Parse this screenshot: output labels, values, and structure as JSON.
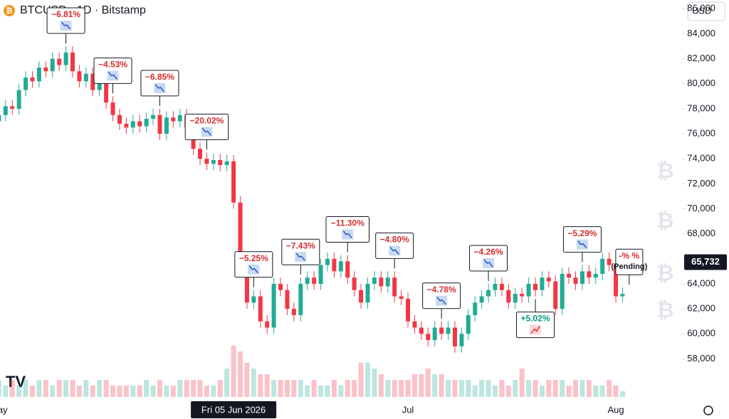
{
  "chart_data": {
    "type": "candlestick",
    "title": "BTCUSD · 1D · Bitstamp",
    "currency": "USD",
    "up_color": "#22ab94",
    "down_color": "#f23645",
    "open": [
      77000,
      77500,
      78200,
      78000,
      79500,
      80500,
      80200,
      81300,
      81000,
      82000,
      81500,
      82500,
      81000,
      80200,
      80800,
      79500,
      80500,
      78500,
      77500,
      76800,
      76500,
      77000,
      76600,
      77200,
      77500,
      76000,
      77300,
      77000,
      77500,
      76500,
      74800,
      74000,
      73600,
      73900,
      73500,
      73800,
      70500,
      66000,
      62500,
      63000,
      61000,
      60500,
      64000,
      63500,
      62000,
      61500,
      64000,
      64500,
      64000,
      65500,
      66000,
      65000,
      65800,
      64500,
      63500,
      62500,
      64000,
      64500,
      63800,
      64500,
      63000,
      62800,
      61000,
      60500,
      60000,
      59500,
      60500,
      60000,
      60500,
      59000,
      60000,
      61500,
      62500,
      63000,
      63500,
      64000,
      63500,
      62500,
      63200,
      63000,
      64000,
      63500,
      64500,
      64200,
      62000,
      64800,
      64500,
      64000,
      65000,
      64500,
      64800,
      66000,
      65500,
      63000
    ],
    "high": [
      78000,
      78700,
      78700,
      80000,
      81000,
      81000,
      81800,
      81800,
      82500,
      82500,
      83000,
      83000,
      81500,
      81300,
      81300,
      81000,
      81000,
      79000,
      78000,
      77300,
      77500,
      77500,
      77700,
      78000,
      78000,
      77800,
      77800,
      78000,
      78000,
      77000,
      75300,
      74500,
      74400,
      74400,
      74300,
      74300,
      71000,
      66500,
      63500,
      63500,
      61500,
      64500,
      64500,
      64000,
      62500,
      64500,
      65000,
      65000,
      66000,
      66500,
      66500,
      66300,
      66300,
      65000,
      64000,
      64500,
      65000,
      65000,
      65000,
      65000,
      63500,
      63300,
      61500,
      61000,
      60500,
      61000,
      61000,
      61000,
      61000,
      60500,
      62000,
      63000,
      63500,
      64000,
      64500,
      64500,
      64000,
      63700,
      63700,
      64500,
      64500,
      65000,
      65000,
      64700,
      65300,
      65300,
      65000,
      65500,
      65500,
      65300,
      66500,
      66500,
      66000,
      63700
    ],
    "low": [
      76500,
      77000,
      77500,
      77500,
      79000,
      79700,
      79700,
      80500,
      80500,
      81000,
      81000,
      80500,
      79700,
      79700,
      79000,
      79000,
      78000,
      77000,
      76300,
      76000,
      76000,
      76100,
      76100,
      76700,
      75500,
      75500,
      76500,
      76500,
      76000,
      74300,
      73500,
      73100,
      73100,
      73000,
      73000,
      70000,
      65500,
      62000,
      62000,
      60500,
      60000,
      60000,
      63000,
      61500,
      61000,
      61000,
      63500,
      63500,
      63500,
      65000,
      64500,
      64500,
      64000,
      63000,
      62000,
      62000,
      63500,
      63300,
      63300,
      62500,
      62300,
      60500,
      60000,
      59500,
      59000,
      59000,
      59500,
      59500,
      58500,
      58500,
      59500,
      61000,
      62000,
      62500,
      63000,
      63000,
      62000,
      62000,
      62500,
      62500,
      63000,
      63000,
      63700,
      61500,
      61500,
      64000,
      63500,
      63500,
      64000,
      64000,
      64300,
      65000,
      62500,
      62500
    ],
    "close": [
      77500,
      78200,
      78000,
      79500,
      80500,
      80200,
      81300,
      81000,
      82000,
      81500,
      82500,
      81000,
      80200,
      80800,
      79500,
      80500,
      78500,
      77500,
      76800,
      76500,
      77000,
      76600,
      77200,
      77500,
      76000,
      77300,
      77000,
      77500,
      76500,
      74800,
      74000,
      73600,
      73900,
      73500,
      73800,
      70500,
      66000,
      62500,
      63000,
      61000,
      60500,
      64000,
      63500,
      62000,
      61500,
      64000,
      64500,
      64000,
      65500,
      66000,
      65000,
      65800,
      64500,
      63500,
      62500,
      64000,
      64500,
      63800,
      64500,
      63000,
      62800,
      61000,
      60500,
      60000,
      59500,
      60500,
      60000,
      60500,
      59000,
      60000,
      61500,
      62500,
      63000,
      63500,
      64000,
      63500,
      62500,
      63200,
      63000,
      64000,
      63500,
      64500,
      64200,
      62000,
      64800,
      64500,
      64000,
      65000,
      64500,
      64800,
      66000,
      65500,
      63000,
      63200
    ],
    "volume": [
      3,
      2,
      3,
      2,
      3,
      2,
      3,
      3,
      2,
      3,
      3,
      3,
      2,
      3,
      2,
      3,
      3,
      2,
      2,
      2,
      2,
      2,
      3,
      2,
      3,
      2,
      2,
      3,
      3,
      3,
      3,
      2,
      2,
      3,
      5,
      9,
      8,
      6,
      5,
      4,
      4,
      3,
      3,
      3,
      3,
      3,
      2,
      3,
      2,
      2,
      3,
      2,
      3,
      3,
      6,
      6,
      5,
      4,
      3,
      3,
      3,
      3,
      4,
      4,
      5,
      4,
      4,
      3,
      3,
      3,
      3,
      2,
      3,
      3,
      2,
      3,
      2,
      3,
      5,
      3,
      3,
      2,
      3,
      3,
      3,
      2,
      3,
      3,
      3,
      2,
      2,
      3,
      2,
      1
    ],
    "ylim": [
      56000,
      86700
    ],
    "yticks": [
      {
        "value": 58000,
        "label": "58,000"
      },
      {
        "value": 60000,
        "label": "60,000"
      },
      {
        "value": 62000,
        "label": "62,000"
      },
      {
        "value": 64000,
        "label": "64,000"
      },
      {
        "value": 66000,
        "label": "66,000"
      },
      {
        "value": 68000,
        "label": "68,000"
      },
      {
        "value": 70000,
        "label": "70,000"
      },
      {
        "value": 72000,
        "label": "72,000"
      },
      {
        "value": 74000,
        "label": "74,000"
      },
      {
        "value": 76000,
        "label": "76,000"
      },
      {
        "value": 78000,
        "label": "78,000"
      },
      {
        "value": 80000,
        "label": "80,000"
      },
      {
        "value": 82000,
        "label": "82,000"
      },
      {
        "value": 84000,
        "label": "84,000"
      },
      {
        "value": 86000,
        "label": "86,000"
      }
    ],
    "xticks": [
      {
        "value": 0,
        "label": "May"
      },
      {
        "value": 61,
        "label": "Jul"
      },
      {
        "value": 92,
        "label": "Aug"
      }
    ],
    "crosshair_date": {
      "value": 35,
      "label": "Fri 05 Jun 2026"
    },
    "last_price": {
      "value": 65732,
      "label": "65,732"
    },
    "annotations": [
      {
        "label": "−6.81%"
      },
      {
        "label": "−4.53%"
      },
      {
        "label": "−6.85%"
      },
      {
        "label": "−20.02%"
      },
      {
        "label": "−5.25%"
      },
      {
        "label": "−7.43%"
      },
      {
        "label": "−11.30%"
      },
      {
        "label": "−4.80%"
      },
      {
        "label": "−4.78%"
      },
      {
        "label": "−4.26%"
      },
      {
        "label": "+5.02%"
      },
      {
        "label": "−5.29%"
      },
      {
        "label": "-% %",
        "sublabel": "(Pending)"
      }
    ]
  }
}
